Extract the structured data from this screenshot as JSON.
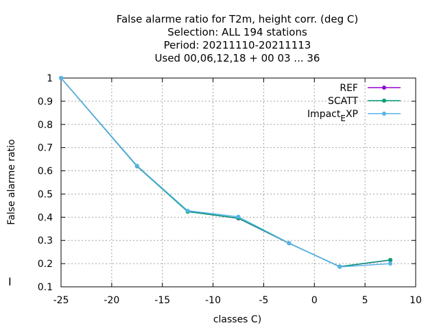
{
  "chart_data": {
    "type": "line",
    "title_lines": [
      "False alarme ratio  for T2m, height corr. (deg C)",
      "Selection: ALL    194 stations",
      "Period: 20211110-20211113",
      "Used  00,06,12,18 + 00 03 ... 36"
    ],
    "xlabel": "classes C)",
    "ylabel": "False alarme ratio",
    "left_mark": "I",
    "xlim": [
      -25,
      10
    ],
    "ylim": [
      0.1,
      1
    ],
    "xticks": [
      -25,
      -20,
      -15,
      -10,
      -5,
      0,
      5,
      10
    ],
    "xtick_labels": [
      "-25",
      "-20",
      "-15",
      "-10",
      "-5",
      "0",
      "5",
      "10"
    ],
    "yticks": [
      0.1,
      0.2,
      0.3,
      0.4,
      0.5,
      0.6,
      0.7,
      0.8,
      0.9,
      1
    ],
    "ytick_labels": [
      "0.1",
      "0.2",
      "0.3",
      "0.4",
      "0.5",
      "0.6",
      "0.7",
      "0.8",
      "0.9",
      "1"
    ],
    "grid": true,
    "legend_position": "top-right",
    "series": [
      {
        "name": "REF",
        "color": "#9400d3",
        "x": [
          -25,
          -17.5,
          -12.5,
          -7.5,
          -2.5,
          2.5,
          7.5
        ],
        "y": [
          1.0,
          0.62,
          0.425,
          0.395,
          0.288,
          0.187,
          0.215
        ]
      },
      {
        "name": "SCATT",
        "color": "#009e73",
        "x": [
          -25,
          -17.5,
          -12.5,
          -7.5,
          -2.5,
          2.5,
          7.5
        ],
        "y": [
          1.0,
          0.62,
          0.424,
          0.396,
          0.288,
          0.187,
          0.216
        ]
      },
      {
        "name": "Impact",
        "name_sub": "E",
        "name_tail": "XP",
        "color": "#56b4e9",
        "x": [
          -25,
          -17.5,
          -12.5,
          -7.5,
          -2.5,
          2.5,
          7.5
        ],
        "y": [
          1.0,
          0.622,
          0.428,
          0.402,
          0.289,
          0.186,
          0.2
        ]
      }
    ]
  }
}
